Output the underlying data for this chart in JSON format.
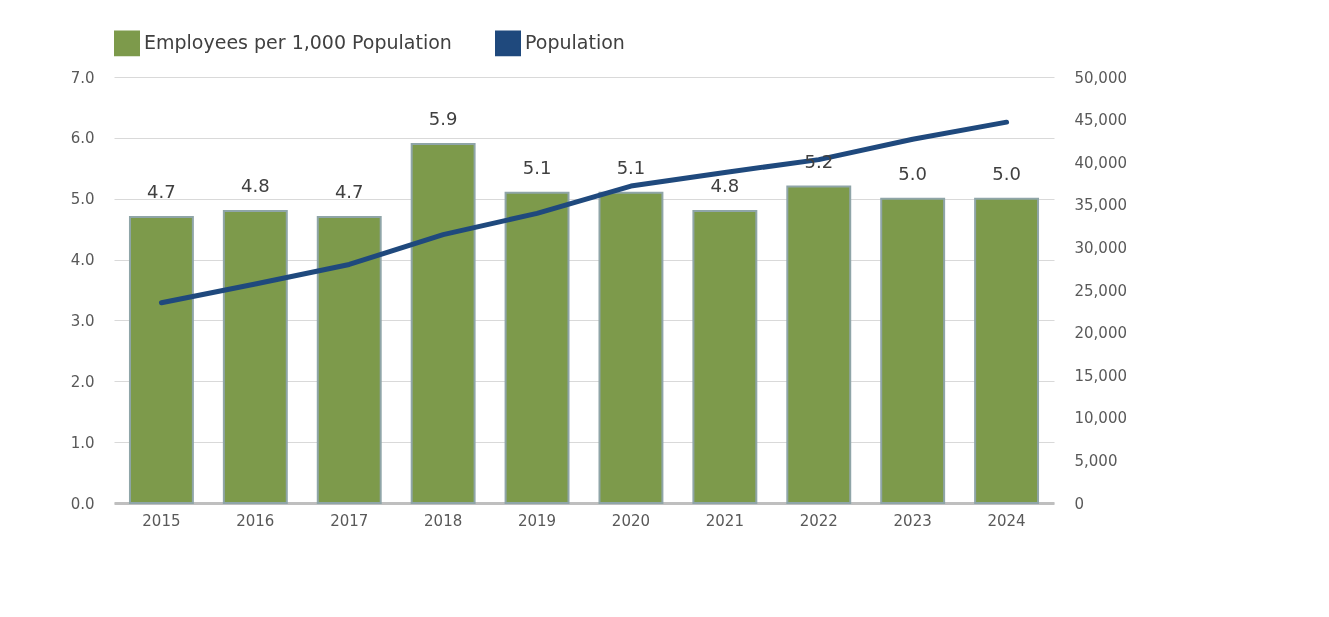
{
  "chart_data": {
    "type": "bar",
    "categories": [
      "2015",
      "2016",
      "2017",
      "2018",
      "2019",
      "2020",
      "2021",
      "2022",
      "2023",
      "2024"
    ],
    "series": [
      {
        "name": "Employees per 1,000 Population",
        "color": "#7d9a4b",
        "values": [
          4.7,
          4.8,
          4.7,
          5.9,
          5.1,
          5.1,
          4.8,
          5.2,
          5.0,
          5.0
        ],
        "value_labels": [
          "4.7",
          "4.8",
          "4.7",
          "5.9",
          "5.1",
          "5.1",
          "4.8",
          "5.2",
          "5.0",
          "5.0"
        ]
      },
      {
        "name": "Population",
        "type": "line",
        "axis": "y2",
        "color": "#1f497d",
        "values": [
          23500,
          25700,
          28000,
          31500,
          34000,
          37200,
          38800,
          40300,
          42700,
          44700
        ]
      }
    ],
    "ylim": [
      0,
      7
    ],
    "yticks": [
      {
        "value": 0,
        "label": "0.0"
      },
      {
        "value": 1,
        "label": "1.0"
      },
      {
        "value": 2,
        "label": "2.0"
      },
      {
        "value": 3,
        "label": "3.0"
      },
      {
        "value": 4,
        "label": "4.0"
      },
      {
        "value": 5,
        "label": "5.0"
      },
      {
        "value": 6,
        "label": "6.0"
      },
      {
        "value": 7,
        "label": "7.0"
      }
    ],
    "y2lim": [
      0,
      50000
    ],
    "y2ticks": [
      0,
      {
        "value": 5000,
        "label": "5,000"
      },
      {
        "value": 10000,
        "label": "10,000"
      },
      {
        "value": 15000,
        "label": "15,000"
      },
      {
        "value": 20000,
        "label": "20,000"
      },
      {
        "value": 25000,
        "label": "25,000"
      },
      {
        "value": 30000,
        "label": "30,000"
      },
      {
        "value": 35000,
        "label": "35,000"
      },
      {
        "value": 40000,
        "label": "40,000"
      },
      {
        "value": 45000,
        "label": "45,000"
      },
      {
        "value": 50000,
        "label": "50,000"
      }
    ],
    "grid": "y",
    "legend": "top"
  }
}
